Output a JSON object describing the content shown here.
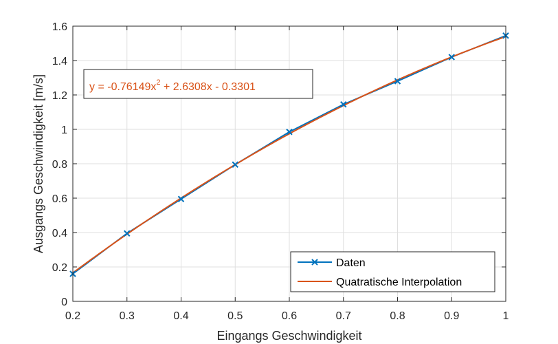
{
  "chart_data": {
    "type": "line",
    "xlabel": "Eingangs Geschwindigkeit",
    "ylabel": "Ausgangs Geschwindigkeit [m/s]",
    "xlim": [
      0.2,
      1.0
    ],
    "ylim": [
      0,
      1.6
    ],
    "xticks": [
      0.2,
      0.3,
      0.4,
      0.5,
      0.6,
      0.7,
      0.8,
      0.9,
      1.0
    ],
    "xtick_labels": [
      "0.2",
      "0.3",
      "0.4",
      "0.5",
      "0.6",
      "0.7",
      "0.8",
      "0.9",
      "1"
    ],
    "yticks": [
      0,
      0.2,
      0.4,
      0.6,
      0.8,
      1.0,
      1.2,
      1.4,
      1.6
    ],
    "ytick_labels": [
      "0",
      "0.2",
      "0.4",
      "0.6",
      "0.8",
      "1",
      "1.2",
      "1.4",
      "1.6"
    ],
    "grid": true,
    "legend_position": "bottom-right",
    "series": [
      {
        "name": "Daten",
        "color": "#0072BD",
        "marker": "x",
        "x": [
          0.2,
          0.3,
          0.4,
          0.5,
          0.6,
          0.7,
          0.8,
          0.9,
          1.0
        ],
        "y": [
          0.16,
          0.395,
          0.595,
          0.795,
          0.985,
          1.145,
          1.28,
          1.42,
          1.545
        ]
      },
      {
        "name": "Quatratische Interpolation",
        "color": "#D95319",
        "marker": "none",
        "fit": {
          "a": -0.76149,
          "b": 2.6308,
          "c": -0.3301
        }
      }
    ],
    "annotation": {
      "prefix": "y = -0.76149x",
      "exponent": "2",
      "suffix": " + 2.6308x - 0.3301",
      "color": "#D95319",
      "position": "top-left"
    }
  }
}
